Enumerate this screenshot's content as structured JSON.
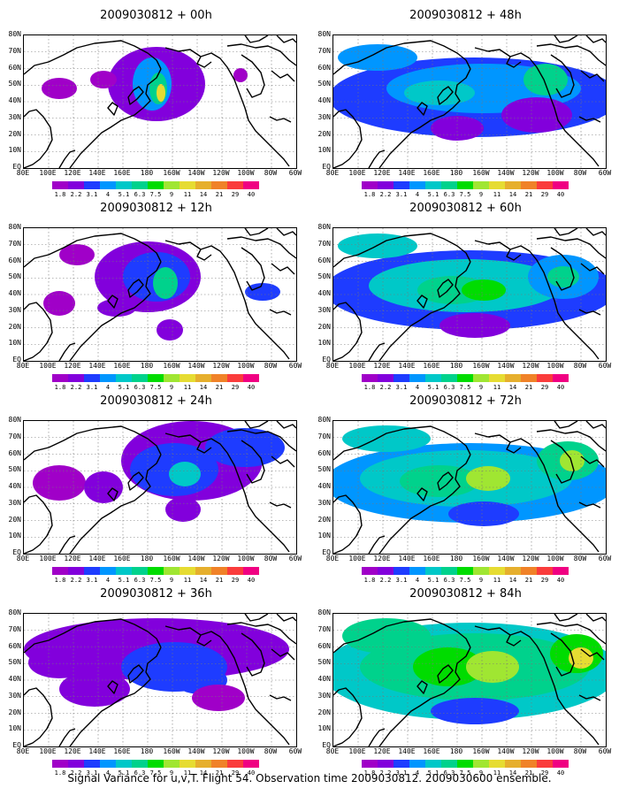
{
  "panels": [
    {
      "title": "2009030812 + 00h"
    },
    {
      "title": "2009030812 + 12h"
    },
    {
      "title": "2009030812 + 24h"
    },
    {
      "title": "2009030812 + 36h"
    },
    {
      "title": "2009030812 + 48h"
    },
    {
      "title": "2009030812 + 60h"
    },
    {
      "title": "2009030812 + 72h"
    },
    {
      "title": "2009030812 + 84h"
    }
  ],
  "lat_labels": [
    "80N",
    "70N",
    "60N",
    "50N",
    "40N",
    "30N",
    "20N",
    "10N",
    "EQ"
  ],
  "lon_labels": [
    "80E",
    "100E",
    "120E",
    "140E",
    "160E",
    "180",
    "160W",
    "140W",
    "120W",
    "100W",
    "80W",
    "60W"
  ],
  "colorbar": {
    "colors": [
      "#a000c8",
      "#8200dc",
      "#1e3cff",
      "#0096ff",
      "#00c8c8",
      "#00d28c",
      "#00dc00",
      "#a0e632",
      "#e6dc32",
      "#e6af2d",
      "#f08228",
      "#fa3c3c",
      "#f00082"
    ],
    "labels": [
      "1.8",
      "2.2",
      "3.1",
      "4",
      "5.1",
      "6.3",
      "7.5",
      "9",
      "11",
      "14",
      "21",
      "29",
      "40"
    ]
  },
  "caption": "Signal Variance for u,v,T. Flight 54. Observation time 2009030812. 2009030600 ensemble."
}
